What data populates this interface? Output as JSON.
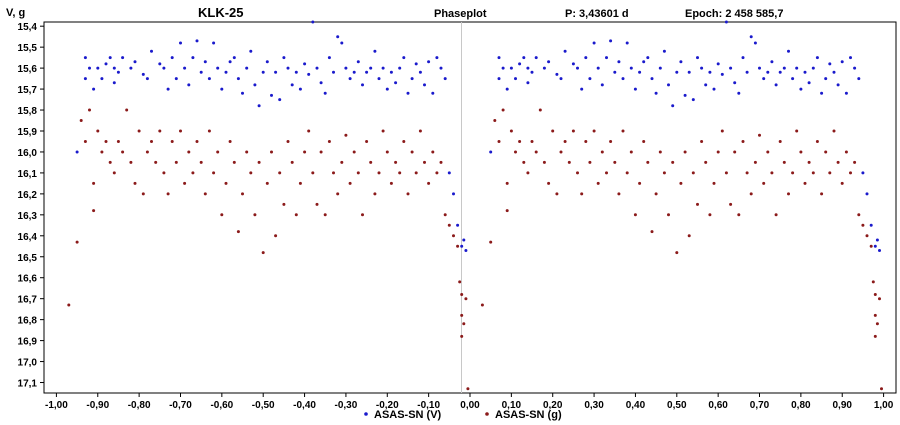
{
  "header": {
    "ylabel": "V, g",
    "star": "KLK-25",
    "plot_type": "Phaseplot",
    "period": "P:  3,43601 d",
    "epoch": "Epoch:  2 458 585,7"
  },
  "chart_data": {
    "type": "scatter",
    "title": "KLK-25",
    "ylabel": "V, g",
    "xlim": [
      -1.03,
      1.03
    ],
    "ylim": [
      15.38,
      17.15
    ],
    "y_inverted": true,
    "x_ticks": [
      "-1,00",
      "-0,90",
      "-0,80",
      "-0,70",
      "-0,60",
      "-0,50",
      "-0,40",
      "-0,30",
      "-0,20",
      "-0,10",
      "0,00",
      "0,10",
      "0,20",
      "0,30",
      "0,40",
      "0,50",
      "0,60",
      "0,70",
      "0,80",
      "0,90",
      "1,00"
    ],
    "y_ticks": [
      "15,4",
      "15,5",
      "15,6",
      "15,7",
      "15,8",
      "15,9",
      "16,0",
      "16,1",
      "16,2",
      "16,3",
      "16,4",
      "16,5",
      "16,6",
      "16,7",
      "16,8",
      "16,9",
      "17,0",
      "17,1"
    ],
    "phase_mirrored": true,
    "legend_position": "bottom-center",
    "series": [
      {
        "name": "ASAS-SN (V)",
        "color": "#1a1acc",
        "x": [
          -0.95,
          -0.93,
          -0.93,
          -0.92,
          -0.91,
          -0.9,
          -0.89,
          -0.88,
          -0.87,
          -0.86,
          -0.86,
          -0.85,
          -0.84,
          -0.82,
          -0.81,
          -0.79,
          -0.78,
          -0.77,
          -0.75,
          -0.74,
          -0.73,
          -0.72,
          -0.71,
          -0.7,
          -0.69,
          -0.68,
          -0.67,
          -0.66,
          -0.65,
          -0.64,
          -0.63,
          -0.62,
          -0.61,
          -0.6,
          -0.59,
          -0.58,
          -0.57,
          -0.56,
          -0.55,
          -0.54,
          -0.53,
          -0.52,
          -0.51,
          -0.5,
          -0.49,
          -0.48,
          -0.47,
          -0.46,
          -0.45,
          -0.44,
          -0.43,
          -0.42,
          -0.41,
          -0.4,
          -0.39,
          -0.38,
          -0.37,
          -0.36,
          -0.35,
          -0.34,
          -0.33,
          -0.32,
          -0.31,
          -0.3,
          -0.29,
          -0.28,
          -0.27,
          -0.26,
          -0.25,
          -0.24,
          -0.23,
          -0.22,
          -0.21,
          -0.2,
          -0.19,
          -0.18,
          -0.17,
          -0.16,
          -0.15,
          -0.14,
          -0.13,
          -0.12,
          -0.11,
          -0.1,
          -0.09,
          -0.08,
          -0.07,
          -0.06,
          -0.05,
          -0.04,
          -0.03,
          -0.02,
          -0.015,
          -0.01
        ],
        "y": [
          16.0,
          15.55,
          15.65,
          15.6,
          15.7,
          15.6,
          15.65,
          15.58,
          15.55,
          15.6,
          15.67,
          15.62,
          15.55,
          15.6,
          15.57,
          15.63,
          15.65,
          15.52,
          15.58,
          15.6,
          15.7,
          15.55,
          15.65,
          15.48,
          15.6,
          15.68,
          15.55,
          15.47,
          15.62,
          15.57,
          15.65,
          15.48,
          15.6,
          15.7,
          15.62,
          15.57,
          15.55,
          15.65,
          15.72,
          15.6,
          15.52,
          15.68,
          15.78,
          15.62,
          15.57,
          15.73,
          15.62,
          15.75,
          15.55,
          15.6,
          15.68,
          15.62,
          15.7,
          15.58,
          15.63,
          15.38,
          15.6,
          15.67,
          15.72,
          15.55,
          15.62,
          15.45,
          15.48,
          15.6,
          15.65,
          15.62,
          15.57,
          15.68,
          15.62,
          15.6,
          15.52,
          15.65,
          15.6,
          15.7,
          15.62,
          15.67,
          15.6,
          15.55,
          15.72,
          15.65,
          15.58,
          15.62,
          15.68,
          15.57,
          15.72,
          15.55,
          15.6,
          15.65,
          16.1,
          16.2,
          16.35,
          16.45,
          16.42,
          16.47
        ]
      },
      {
        "name": "ASAS-SN (g)",
        "color": "#8b1a1a",
        "x": [
          -0.97,
          -0.95,
          -0.94,
          -0.93,
          -0.92,
          -0.91,
          -0.91,
          -0.9,
          -0.89,
          -0.88,
          -0.87,
          -0.86,
          -0.85,
          -0.84,
          -0.83,
          -0.82,
          -0.81,
          -0.8,
          -0.79,
          -0.78,
          -0.77,
          -0.76,
          -0.75,
          -0.74,
          -0.73,
          -0.72,
          -0.71,
          -0.7,
          -0.69,
          -0.68,
          -0.67,
          -0.66,
          -0.65,
          -0.64,
          -0.63,
          -0.62,
          -0.61,
          -0.6,
          -0.59,
          -0.58,
          -0.57,
          -0.56,
          -0.55,
          -0.54,
          -0.53,
          -0.52,
          -0.51,
          -0.5,
          -0.49,
          -0.48,
          -0.47,
          -0.46,
          -0.45,
          -0.44,
          -0.43,
          -0.42,
          -0.41,
          -0.4,
          -0.39,
          -0.38,
          -0.37,
          -0.36,
          -0.35,
          -0.34,
          -0.33,
          -0.32,
          -0.31,
          -0.3,
          -0.29,
          -0.28,
          -0.27,
          -0.26,
          -0.25,
          -0.24,
          -0.23,
          -0.22,
          -0.21,
          -0.2,
          -0.19,
          -0.18,
          -0.17,
          -0.16,
          -0.15,
          -0.14,
          -0.13,
          -0.12,
          -0.11,
          -0.1,
          -0.09,
          -0.08,
          -0.07,
          -0.06,
          -0.05,
          -0.04,
          -0.03,
          -0.025,
          -0.02,
          -0.02,
          -0.02,
          -0.015,
          -0.01,
          -0.005
        ],
        "y": [
          16.73,
          16.43,
          15.85,
          15.95,
          15.8,
          16.28,
          16.15,
          15.9,
          16.0,
          15.95,
          16.05,
          16.1,
          15.95,
          16.0,
          15.8,
          16.05,
          16.15,
          15.9,
          16.2,
          16.0,
          15.95,
          16.05,
          15.9,
          16.1,
          16.2,
          15.95,
          16.05,
          15.9,
          16.15,
          16.0,
          16.1,
          15.95,
          16.05,
          16.2,
          15.9,
          16.1,
          16.0,
          16.3,
          16.15,
          15.95,
          16.05,
          16.38,
          16.2,
          16.0,
          16.1,
          16.3,
          16.05,
          16.48,
          16.15,
          16.0,
          16.4,
          16.1,
          16.25,
          15.95,
          16.05,
          16.3,
          16.15,
          16.0,
          15.9,
          16.1,
          16.25,
          16.0,
          16.3,
          15.95,
          16.1,
          16.2,
          16.05,
          15.92,
          16.15,
          16.0,
          16.1,
          16.3,
          15.95,
          16.05,
          16.2,
          16.1,
          15.9,
          16.0,
          16.15,
          16.05,
          16.1,
          15.95,
          16.2,
          16.0,
          16.1,
          15.9,
          16.05,
          16.15,
          16.0,
          16.1,
          16.05,
          16.3,
          16.35,
          16.4,
          16.45,
          16.62,
          16.68,
          16.78,
          16.88,
          16.82,
          16.7,
          17.13
        ]
      }
    ]
  },
  "legend": {
    "v_label": "ASAS-SN (V)",
    "g_label": "ASAS-SN (g)"
  }
}
